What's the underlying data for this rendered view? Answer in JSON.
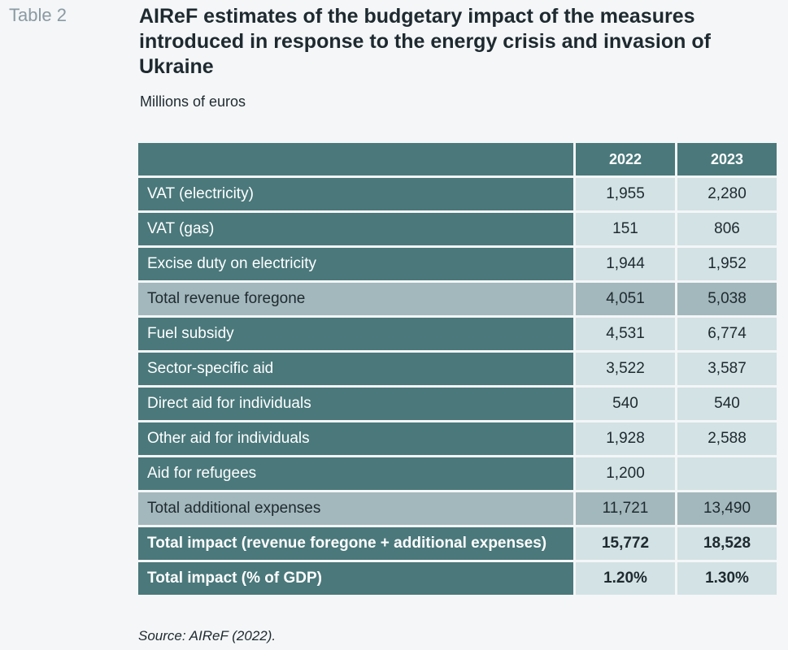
{
  "table_label": "Table 2",
  "title": "AIReF estimates of the budgetary impact of the measures introduced in response to the energy crisis and invasion of Ukraine",
  "subtitle": "Millions of euros",
  "columns": [
    "2022",
    "2023"
  ],
  "rows": [
    {
      "label": "VAT (electricity)",
      "values": [
        "1,955",
        "2,280"
      ],
      "type": "normal"
    },
    {
      "label": "VAT (gas)",
      "values": [
        "151",
        "806"
      ],
      "type": "normal"
    },
    {
      "label": "Excise duty on electricity",
      "values": [
        "1,944",
        "1,952"
      ],
      "type": "normal"
    },
    {
      "label": "Total revenue foregone",
      "values": [
        "4,051",
        "5,038"
      ],
      "type": "subtotal"
    },
    {
      "label": "Fuel subsidy",
      "values": [
        "4,531",
        "6,774"
      ],
      "type": "normal"
    },
    {
      "label": "Sector-specific aid",
      "values": [
        "3,522",
        "3,587"
      ],
      "type": "normal"
    },
    {
      "label": "Direct aid for individuals",
      "values": [
        "540",
        "540"
      ],
      "type": "normal"
    },
    {
      "label": "Other aid for individuals",
      "values": [
        "1,928",
        "2,588"
      ],
      "type": "normal"
    },
    {
      "label": "Aid for refugees",
      "values": [
        "1,200",
        ""
      ],
      "type": "normal"
    },
    {
      "label": "Total additional expenses",
      "values": [
        "11,721",
        "13,490"
      ],
      "type": "subtotal"
    },
    {
      "label": "Total impact (revenue foregone + additional expenses)",
      "values": [
        "15,772",
        "18,528"
      ],
      "type": "total"
    },
    {
      "label": "Total impact (% of GDP)",
      "values": [
        "1.20%",
        "1.30%"
      ],
      "type": "total"
    }
  ],
  "source": "Source: AIReF (2022).",
  "colors": {
    "header_bg": "#4a787b",
    "cell_bg": "#d3e2e4",
    "subtotal_bg": "#a3b8bc",
    "label_color": "#8a9aa3"
  }
}
